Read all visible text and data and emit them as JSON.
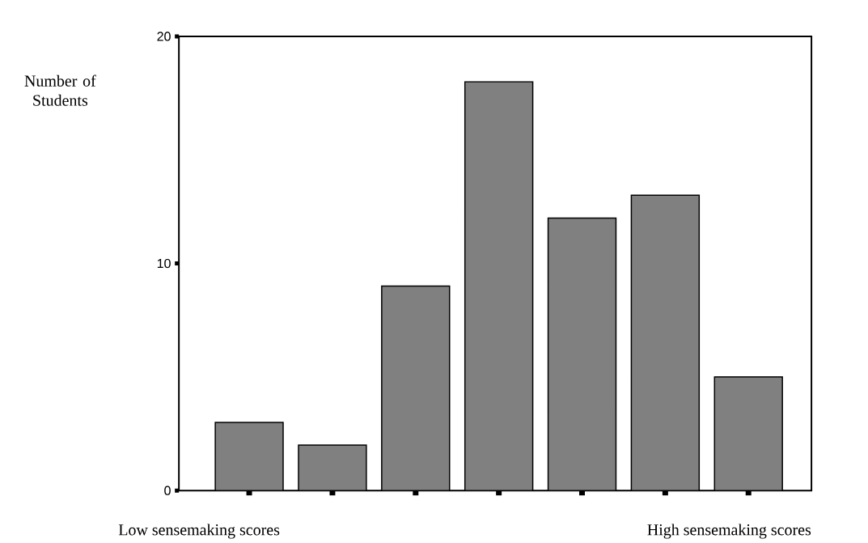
{
  "chart_data": {
    "type": "bar",
    "ylabel": "Number of Students",
    "categories": [
      null,
      null,
      null,
      null,
      null,
      null,
      null
    ],
    "values": [
      3,
      2,
      9,
      18,
      12,
      13,
      5
    ],
    "color": "#808080",
    "ylim": [
      0,
      20
    ],
    "yticks": [
      0,
      10,
      20
    ],
    "tick_labels": "y",
    "grid": false,
    "annotations": [
      "Low sensemaking scores",
      "High sensemaking scores"
    ]
  }
}
